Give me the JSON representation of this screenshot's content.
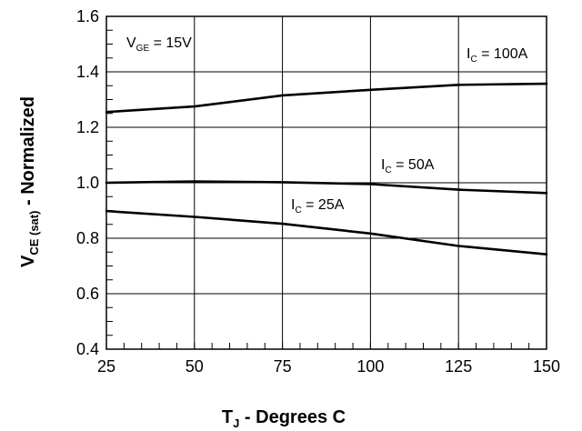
{
  "chart_data": {
    "type": "line",
    "xlabel": {
      "main": "T",
      "sub": "J",
      "rest": " - Degrees C"
    },
    "ylabel": {
      "main": "V",
      "sub": "CE (sat)",
      "rest": " - Normalized"
    },
    "xlim": [
      25,
      150
    ],
    "ylim": [
      0.4,
      1.6
    ],
    "x_ticks": [
      25,
      50,
      75,
      100,
      125,
      150
    ],
    "y_ticks": [
      "0.4",
      "0.6",
      "0.8",
      "1.0",
      "1.2",
      "1.4",
      "1.6"
    ],
    "grid": true,
    "condition": {
      "main": "V",
      "sub": "GE",
      "rest": " = 15V"
    },
    "series": [
      {
        "name": "I_C = 100A",
        "label": {
          "main": "I",
          "sub": "C",
          "rest": " = 100A"
        },
        "x": [
          25,
          50,
          75,
          100,
          125,
          150
        ],
        "y": [
          1.255,
          1.275,
          1.315,
          1.335,
          1.353,
          1.357
        ]
      },
      {
        "name": "I_C = 50A",
        "label": {
          "main": "I",
          "sub": "C",
          "rest": " = 50A"
        },
        "x": [
          25,
          50,
          75,
          100,
          125,
          150
        ],
        "y": [
          1.0,
          1.005,
          1.002,
          0.995,
          0.975,
          0.963
        ]
      },
      {
        "name": "I_C = 25A",
        "label": {
          "main": "I",
          "sub": "C",
          "rest": " = 25A"
        },
        "x": [
          25,
          50,
          75,
          100,
          125,
          150
        ],
        "y": [
          0.898,
          0.877,
          0.852,
          0.817,
          0.772,
          0.742
        ]
      }
    ],
    "colors": {
      "line": "#000000",
      "grid": "#000000",
      "background": "#ffffff"
    }
  }
}
